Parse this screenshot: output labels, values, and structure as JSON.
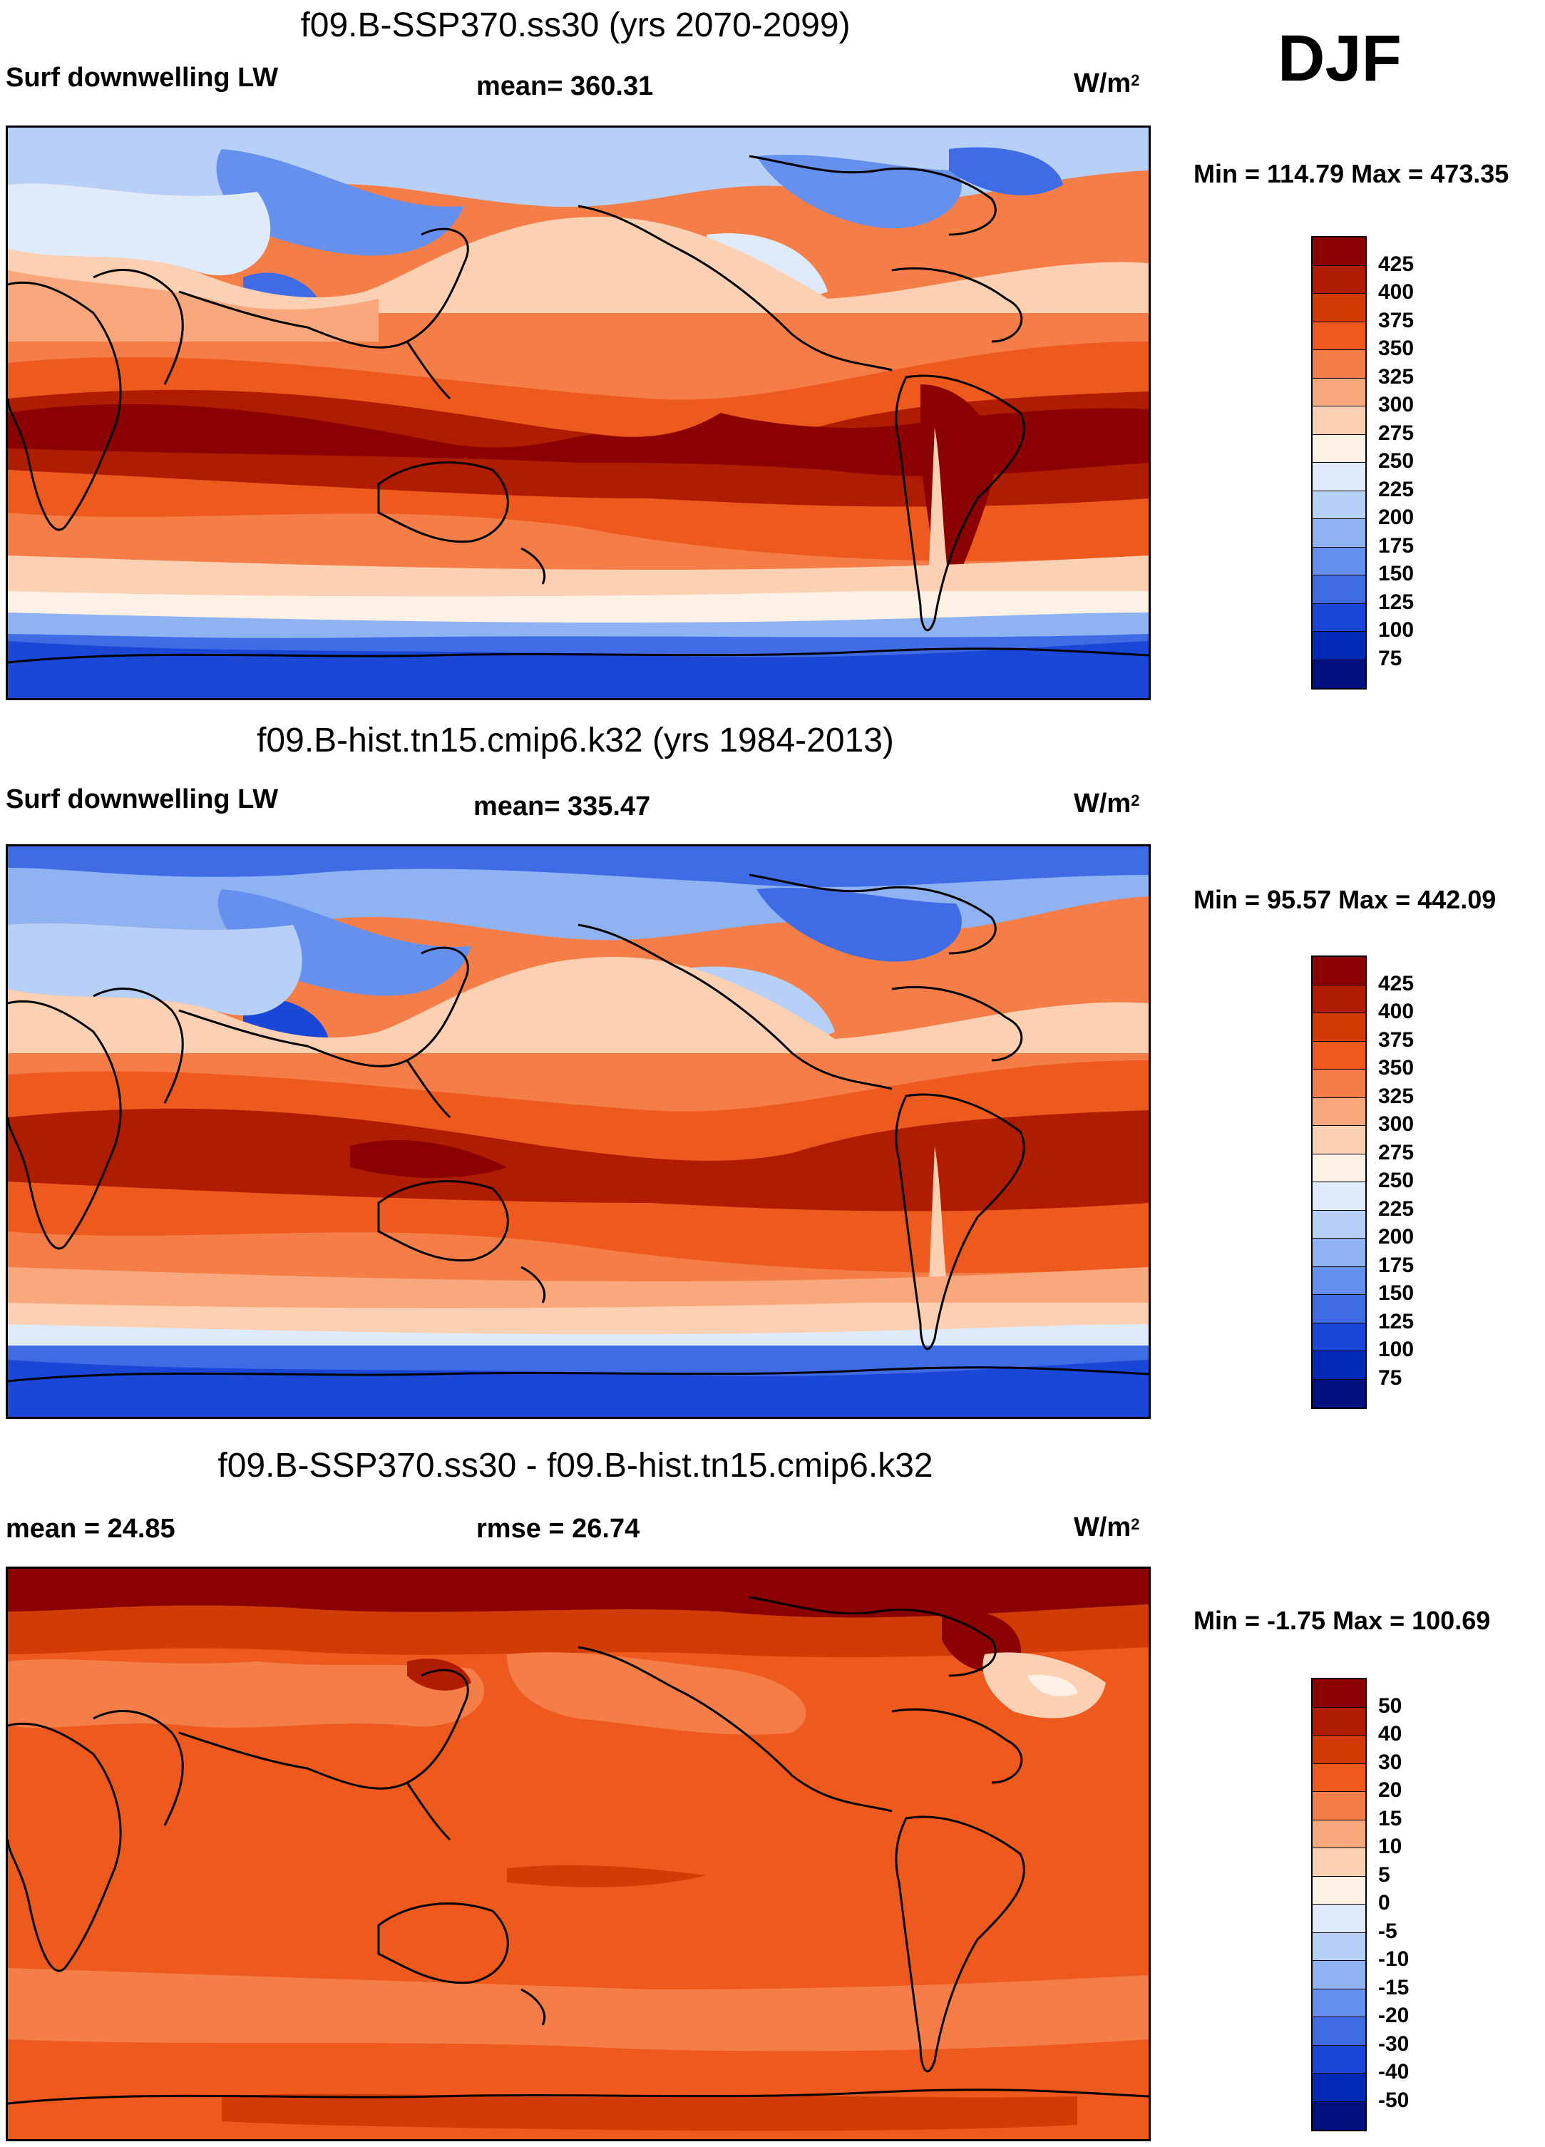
{
  "season": "DJF",
  "units_base": "W/m",
  "units_exp": "2",
  "panels": [
    {
      "title": "f09.B-SSP370.ss30 (yrs 2070-2099)",
      "left_label": "Surf downwelling LW",
      "center_label": "mean= 360.31",
      "minmax": "Min = 114.79 Max = 473.35",
      "colorbar": {
        "labels": [
          "425",
          "400",
          "375",
          "350",
          "325",
          "300",
          "275",
          "250",
          "225",
          "200",
          "175",
          "150",
          "125",
          "100",
          "75"
        ],
        "colors": [
          "#8b0000",
          "#b01c00",
          "#d13c05",
          "#ee5a1e",
          "#f57d48",
          "#f9a77c",
          "#fcd0b2",
          "#fdf0e4",
          "#dfeafb",
          "#b7d0f8",
          "#8fb2f3",
          "#6690ed",
          "#3f6ce5",
          "#1a47d6",
          "#002ab5",
          "#00107e"
        ]
      },
      "map_style": "absolute_2070"
    },
    {
      "title": "f09.B-hist.tn15.cmip6.k32 (yrs 1984-2013)",
      "left_label": "Surf downwelling LW",
      "center_label": "mean= 335.47",
      "minmax": "Min =  95.57 Max = 442.09",
      "colorbar": {
        "labels": [
          "425",
          "400",
          "375",
          "350",
          "325",
          "300",
          "275",
          "250",
          "225",
          "200",
          "175",
          "150",
          "125",
          "100",
          "75"
        ],
        "colors": [
          "#8b0000",
          "#b01c00",
          "#d13c05",
          "#ee5a1e",
          "#f57d48",
          "#f9a77c",
          "#fcd0b2",
          "#fdf0e4",
          "#dfeafb",
          "#b7d0f8",
          "#8fb2f3",
          "#6690ed",
          "#3f6ce5",
          "#1a47d6",
          "#002ab5",
          "#00107e"
        ]
      },
      "map_style": "absolute_hist"
    },
    {
      "title": "f09.B-SSP370.ss30 - f09.B-hist.tn15.cmip6.k32",
      "left_label": "mean =  24.85",
      "center_label": "rmse =  26.74",
      "minmax": "Min =  -1.75 Max = 100.69",
      "colorbar": {
        "labels": [
          "50",
          "40",
          "30",
          "20",
          "15",
          "10",
          "5",
          "0",
          "-5",
          "-10",
          "-15",
          "-20",
          "-30",
          "-40",
          "-50"
        ],
        "colors": [
          "#8b0000",
          "#b01c00",
          "#d13c05",
          "#ee5a1e",
          "#f57d48",
          "#f9a77c",
          "#fcd0b2",
          "#fdf0e4",
          "#dfeafb",
          "#b7d0f8",
          "#8fb2f3",
          "#6690ed",
          "#3f6ce5",
          "#1a47d6",
          "#002ab5",
          "#00107e"
        ]
      },
      "map_style": "difference"
    }
  ]
}
